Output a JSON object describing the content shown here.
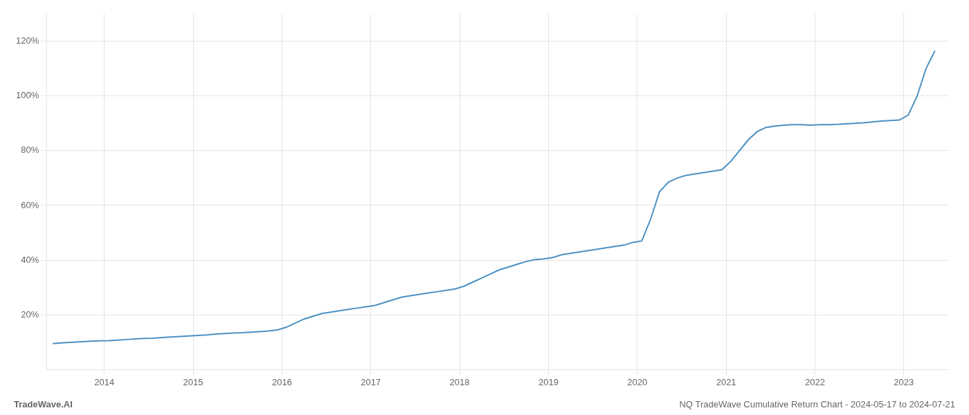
{
  "chart_data": {
    "type": "line",
    "x": [
      2013.42,
      2013.55,
      2013.65,
      2013.75,
      2013.85,
      2013.95,
      2014.05,
      2014.15,
      2014.25,
      2014.35,
      2014.45,
      2014.55,
      2014.65,
      2014.75,
      2014.85,
      2014.95,
      2015.05,
      2015.15,
      2015.25,
      2015.35,
      2015.45,
      2015.55,
      2015.65,
      2015.75,
      2015.85,
      2015.95,
      2016.05,
      2016.15,
      2016.25,
      2016.35,
      2016.45,
      2016.55,
      2016.65,
      2016.75,
      2016.85,
      2016.95,
      2017.05,
      2017.15,
      2017.25,
      2017.35,
      2017.45,
      2017.55,
      2017.65,
      2017.75,
      2017.85,
      2017.95,
      2018.05,
      2018.15,
      2018.25,
      2018.35,
      2018.45,
      2018.55,
      2018.65,
      2018.75,
      2018.85,
      2018.95,
      2019.05,
      2019.15,
      2019.25,
      2019.35,
      2019.45,
      2019.55,
      2019.65,
      2019.75,
      2019.85,
      2019.95,
      2020.05,
      2020.15,
      2020.25,
      2020.35,
      2020.45,
      2020.55,
      2020.65,
      2020.75,
      2020.85,
      2020.95,
      2021.05,
      2021.15,
      2021.25,
      2021.35,
      2021.45,
      2021.55,
      2021.65,
      2021.75,
      2021.85,
      2021.95,
      2022.05,
      2022.15,
      2022.25,
      2022.35,
      2022.45,
      2022.55,
      2022.65,
      2022.75,
      2022.85,
      2022.95,
      2023.05,
      2023.15,
      2023.25,
      2023.35
    ],
    "values": [
      9.5,
      9.8,
      10.0,
      10.2,
      10.4,
      10.5,
      10.6,
      10.8,
      11.0,
      11.2,
      11.4,
      11.5,
      11.7,
      11.9,
      12.1,
      12.3,
      12.5,
      12.7,
      13.0,
      13.2,
      13.4,
      13.5,
      13.7,
      13.9,
      14.1,
      14.5,
      15.5,
      17.0,
      18.5,
      19.5,
      20.5,
      21.0,
      21.5,
      22.0,
      22.5,
      23.0,
      23.5,
      24.5,
      25.5,
      26.5,
      27.0,
      27.5,
      28.0,
      28.5,
      29.0,
      29.5,
      30.5,
      32.0,
      33.5,
      35.0,
      36.5,
      37.5,
      38.5,
      39.5,
      40.2,
      40.5,
      41.0,
      42.0,
      42.5,
      43.0,
      43.5,
      44.0,
      44.5,
      45.0,
      45.5,
      46.5,
      47.0,
      55.0,
      65.0,
      68.5,
      70.0,
      71.0,
      71.5,
      72.0,
      72.5,
      73.0,
      76.0,
      80.0,
      84.0,
      87.0,
      88.5,
      89.0,
      89.3,
      89.5,
      89.5,
      89.3,
      89.5,
      89.5,
      89.6,
      89.8,
      90.0,
      90.2,
      90.5,
      90.8,
      91.0,
      91.2,
      93.0,
      100.0,
      110.0,
      116.5
    ],
    "color": "#4a90c4",
    "xlim": [
      2013.35,
      2023.5
    ],
    "xticks": [
      2014,
      2015,
      2016,
      2017,
      2018,
      2019,
      2020,
      2021,
      2022,
      2023
    ],
    "ylim": [
      0,
      130
    ],
    "yticks": [
      {
        "value": 20,
        "label": "20%"
      },
      {
        "value": 40,
        "label": "40%"
      },
      {
        "value": 60,
        "label": "60%"
      },
      {
        "value": 80,
        "label": "80%"
      },
      {
        "value": 100,
        "label": "100%"
      },
      {
        "value": 120,
        "label": "120%"
      }
    ],
    "grid": true,
    "annotations": [
      "TradeWave.AI",
      "NQ TradeWave Cumulative Return Chart - 2024-05-17 to 2024-07-21"
    ]
  }
}
